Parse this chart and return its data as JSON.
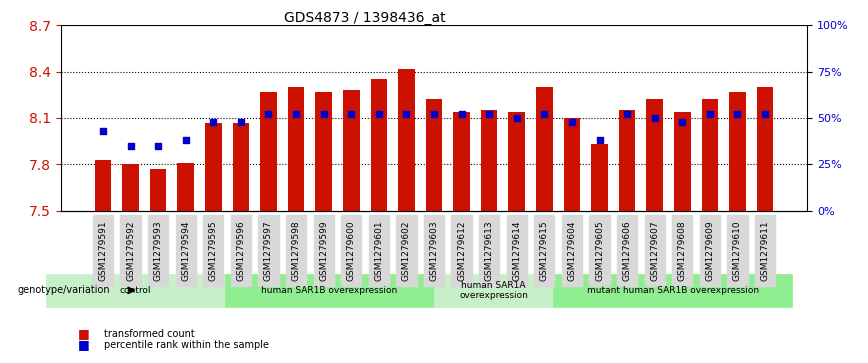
{
  "title": "GDS4873 / 1398436_at",
  "samples": [
    "GSM1279591",
    "GSM1279592",
    "GSM1279593",
    "GSM1279594",
    "GSM1279595",
    "GSM1279596",
    "GSM1279597",
    "GSM1279598",
    "GSM1279599",
    "GSM1279600",
    "GSM1279601",
    "GSM1279602",
    "GSM1279603",
    "GSM1279612",
    "GSM1279613",
    "GSM1279614",
    "GSM1279615",
    "GSM1279604",
    "GSM1279605",
    "GSM1279606",
    "GSM1279607",
    "GSM1279608",
    "GSM1279609",
    "GSM1279610",
    "GSM1279611"
  ],
  "red_values": [
    7.83,
    7.8,
    7.77,
    7.81,
    8.07,
    8.07,
    8.27,
    8.3,
    8.27,
    8.28,
    8.35,
    8.42,
    8.22,
    8.14,
    8.15,
    8.14,
    8.3,
    8.1,
    7.93,
    8.15,
    8.22,
    8.14,
    8.22,
    8.27,
    8.3
  ],
  "blue_values": [
    43,
    35,
    35,
    38,
    48,
    48,
    52,
    52,
    52,
    52,
    52,
    52,
    52,
    52,
    52,
    50,
    52,
    48,
    38,
    52,
    50,
    48,
    52,
    52,
    52
  ],
  "groups": [
    {
      "label": "control",
      "start": 0,
      "end": 5,
      "color": "#c8f0c8"
    },
    {
      "label": "human SAR1B overexpression",
      "start": 6,
      "end": 12,
      "color": "#90ee90"
    },
    {
      "label": "human SAR1A\noverexpression",
      "start": 13,
      "end": 16,
      "color": "#c8f0c8"
    },
    {
      "label": "mutant human SAR1B overexpression",
      "start": 17,
      "end": 24,
      "color": "#90ee90"
    }
  ],
  "ylim_left": [
    7.5,
    8.7
  ],
  "ylim_right": [
    0,
    100
  ],
  "yticks_left": [
    7.5,
    7.8,
    8.1,
    8.4,
    8.7
  ],
  "yticks_right": [
    0,
    25,
    50,
    75,
    100
  ],
  "bar_color": "#cc1100",
  "dot_color": "#0000cc",
  "background_color": "#ffffff",
  "plot_bg_color": "#ffffff",
  "grid_color": "#000000",
  "xlabel_color": "#cc1100",
  "ylabel_right_color": "#0000cc",
  "genotype_label": "genotype/variation",
  "legend_items": [
    "transformed count",
    "percentile rank within the sample"
  ]
}
